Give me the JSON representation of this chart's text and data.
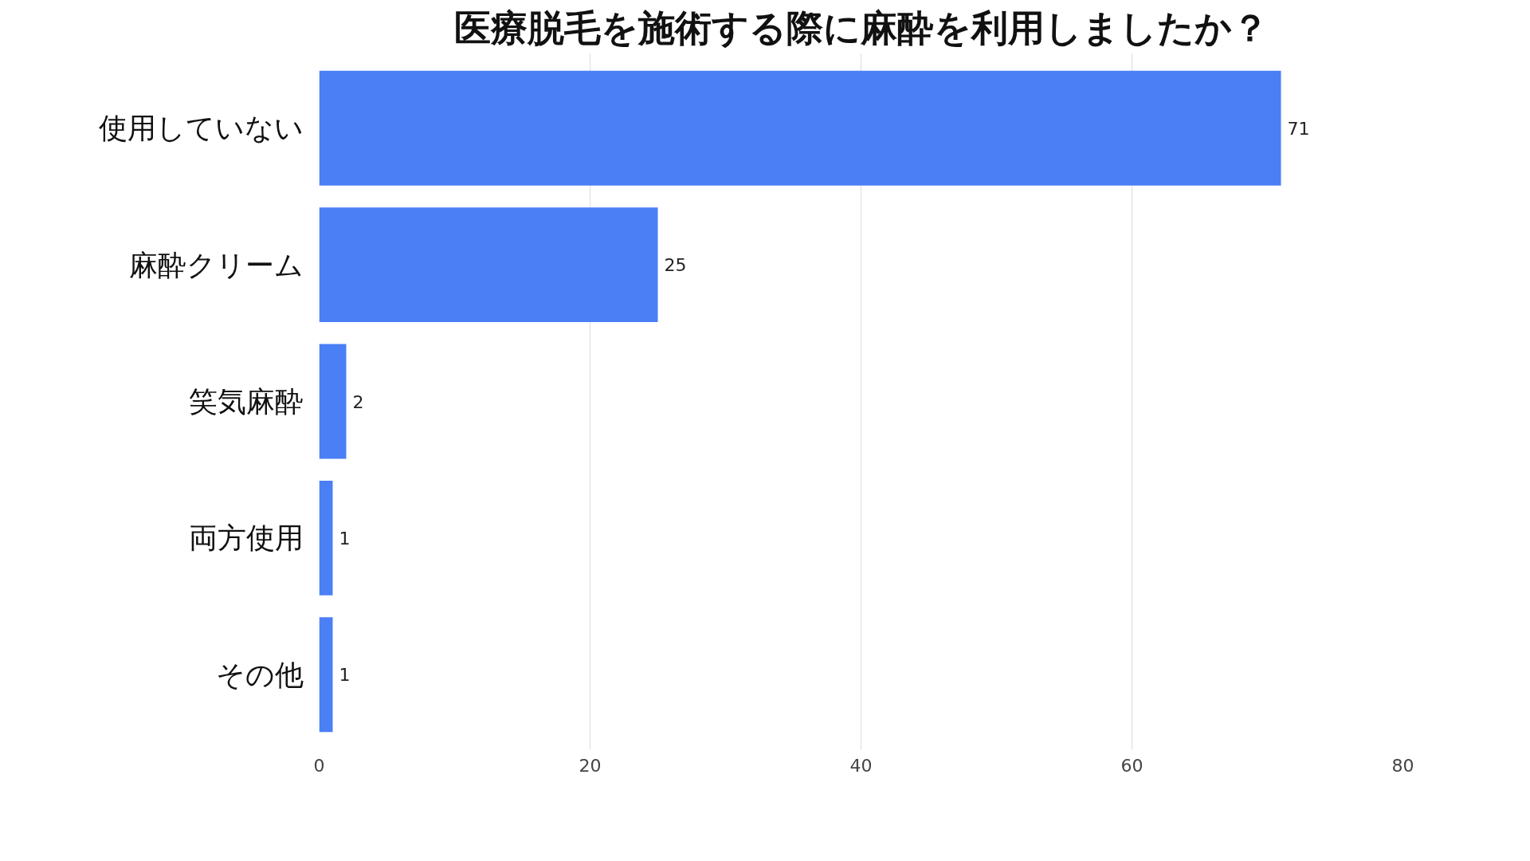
{
  "chart_data": {
    "type": "bar",
    "orientation": "horizontal",
    "title": "医療脱毛を施術する際に麻酔を利用しましたか？",
    "categories": [
      "使用していない",
      "麻酔クリーム",
      "笑気麻酔",
      "両方使用",
      "その他"
    ],
    "values": [
      71,
      25,
      2,
      1,
      1
    ],
    "color": "#4a7ff5",
    "xlim": [
      0,
      80
    ],
    "xticks": [
      0,
      20,
      40,
      60,
      80
    ],
    "grid": "x",
    "data_labels": true
  }
}
